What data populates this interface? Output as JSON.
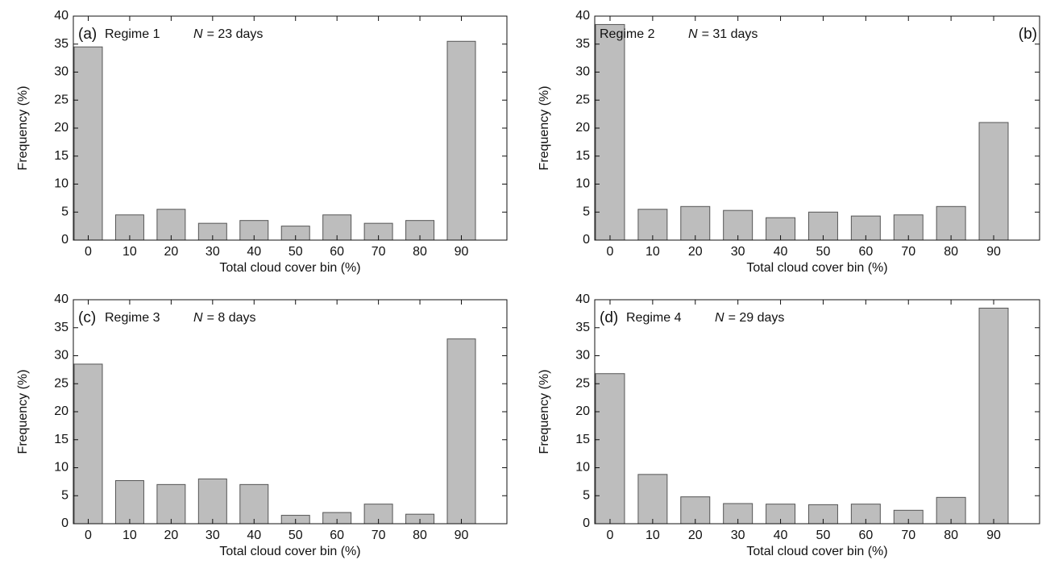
{
  "chart_data": [
    {
      "type": "bar",
      "panel_label": "(a)",
      "label_corner": "upper left",
      "regime": "Regime 1",
      "n_symbol": "N",
      "n_value": "= 23 days",
      "xlabel": "Total cloud cover bin (%)",
      "ylabel": "Frequency (%)",
      "categories": [
        0,
        10,
        20,
        30,
        40,
        50,
        60,
        70,
        80,
        90
      ],
      "values": [
        34.5,
        4.5,
        5.5,
        3,
        3.5,
        2.5,
        4.5,
        3,
        3.5,
        35.5
      ],
      "color": "#bdbdbd",
      "ylim": [
        0,
        40
      ],
      "yticks": [
        0,
        5,
        10,
        15,
        20,
        25,
        30,
        35,
        40
      ],
      "grid": false
    },
    {
      "type": "bar",
      "panel_label": "(b)",
      "label_corner": "upper right",
      "regime": "Regime 2",
      "n_symbol": "N",
      "n_value": "= 31 days",
      "xlabel": "Total cloud cover bin (%)",
      "ylabel": "Frequency (%)",
      "categories": [
        0,
        10,
        20,
        30,
        40,
        50,
        60,
        70,
        80,
        90
      ],
      "values": [
        38.5,
        5.5,
        6,
        5.3,
        4,
        5,
        4.3,
        4.5,
        6,
        21
      ],
      "color": "#bdbdbd",
      "ylim": [
        0,
        40
      ],
      "yticks": [
        0,
        5,
        10,
        15,
        20,
        25,
        30,
        35,
        40
      ],
      "grid": false
    },
    {
      "type": "bar",
      "panel_label": "(c)",
      "label_corner": "upper left",
      "regime": "Regime 3",
      "n_symbol": "N",
      "n_value": "= 8 days",
      "xlabel": "Total cloud cover bin (%)",
      "ylabel": "Frequency (%)",
      "categories": [
        0,
        10,
        20,
        30,
        40,
        50,
        60,
        70,
        80,
        90
      ],
      "values": [
        28.5,
        7.7,
        7,
        8,
        7,
        1.5,
        2,
        3.5,
        1.7,
        33
      ],
      "color": "#bdbdbd",
      "ylim": [
        0,
        40
      ],
      "yticks": [
        0,
        5,
        10,
        15,
        20,
        25,
        30,
        35,
        40
      ],
      "grid": false
    },
    {
      "type": "bar",
      "panel_label": "(d)",
      "label_corner": "upper left",
      "regime": "Regime 4",
      "n_symbol": "N",
      "n_value": "= 29 days",
      "xlabel": "Total cloud cover bin (%)",
      "ylabel": "Frequency (%)",
      "categories": [
        0,
        10,
        20,
        30,
        40,
        50,
        60,
        70,
        80,
        90
      ],
      "values": [
        26.8,
        8.8,
        4.8,
        3.6,
        3.5,
        3.4,
        3.5,
        2.4,
        4.7,
        38.5
      ],
      "color": "#bdbdbd",
      "ylim": [
        0,
        40
      ],
      "yticks": [
        0,
        5,
        10,
        15,
        20,
        25,
        30,
        35,
        40
      ],
      "grid": false
    }
  ]
}
